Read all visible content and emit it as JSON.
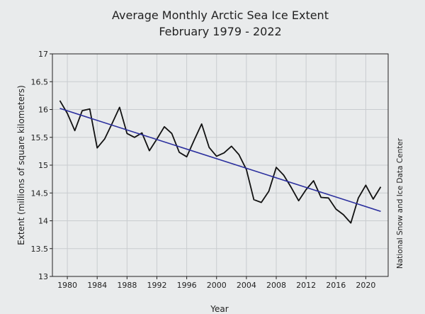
{
  "chart_data": {
    "type": "line",
    "title": "Average Monthly Arctic Sea Ice Extent",
    "subtitle": "February 1979 - 2022",
    "xlabel": "Year",
    "ylabel": "Extent (millions of square kilometers)",
    "credit": "National Snow and Ice Data Center",
    "xlim": [
      1978,
      2023
    ],
    "ylim": [
      13,
      17
    ],
    "x_ticks": [
      1980,
      1984,
      1988,
      1992,
      1996,
      2000,
      2004,
      2008,
      2012,
      2016,
      2020
    ],
    "y_ticks": [
      13,
      13.5,
      14,
      14.5,
      15,
      15.5,
      16,
      16.5,
      17
    ],
    "grid": true,
    "series": [
      {
        "color": "#111111",
        "x": [
          1979,
          1980,
          1981,
          1982,
          1983,
          1984,
          1985,
          1986,
          1987,
          1988,
          1989,
          1990,
          1991,
          1992,
          1993,
          1994,
          1995,
          1996,
          1997,
          1998,
          1999,
          2000,
          2001,
          2002,
          2003,
          2004,
          2005,
          2006,
          2007,
          2008,
          2009,
          2010,
          2011,
          2012,
          2013,
          2014,
          2015,
          2016,
          2017,
          2018,
          2019,
          2020,
          2021,
          2022
        ],
        "y": [
          16.16,
          15.93,
          15.62,
          15.98,
          16.01,
          15.31,
          15.47,
          15.75,
          16.04,
          15.57,
          15.5,
          15.58,
          15.26,
          15.47,
          15.69,
          15.57,
          15.23,
          15.15,
          15.45,
          15.74,
          15.32,
          15.16,
          15.22,
          15.34,
          15.19,
          14.92,
          14.38,
          14.33,
          14.53,
          14.96,
          14.82,
          14.6,
          14.36,
          14.56,
          14.72,
          14.42,
          14.41,
          14.21,
          14.11,
          13.96,
          14.41,
          14.64,
          14.39,
          14.61
        ]
      },
      {
        "color": "#2b2f9e",
        "x": [
          1979,
          2022
        ],
        "y": [
          16.02,
          14.17
        ]
      }
    ]
  }
}
